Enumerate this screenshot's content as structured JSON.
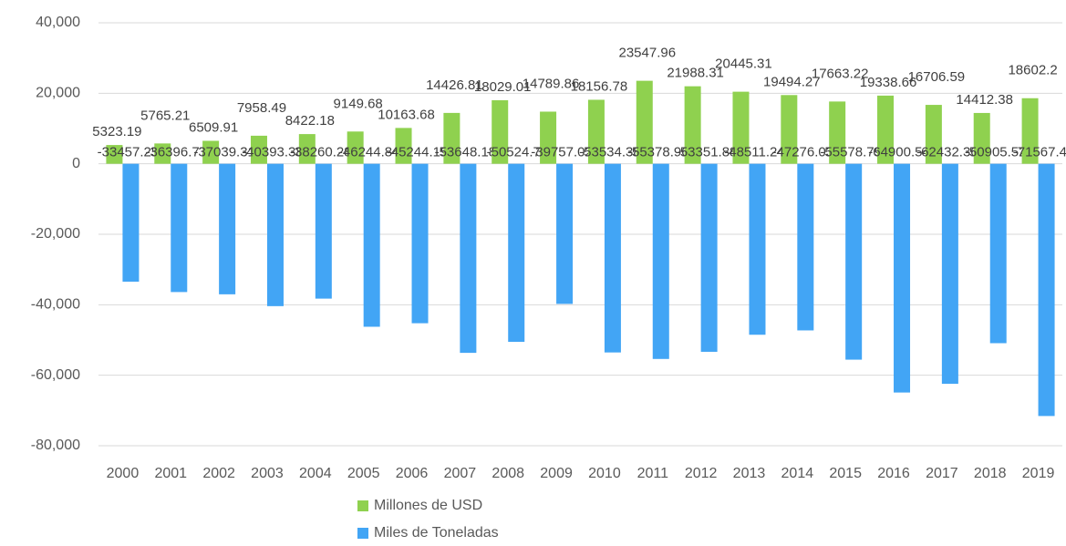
{
  "chart_data": {
    "type": "bar",
    "categories": [
      "2000",
      "2001",
      "2002",
      "2003",
      "2004",
      "2005",
      "2006",
      "2007",
      "2008",
      "2009",
      "2010",
      "2011",
      "2012",
      "2013",
      "2014",
      "2015",
      "2016",
      "2017",
      "2018",
      "2019"
    ],
    "series": [
      {
        "name": "Millones de USD",
        "color": "#8fd14f",
        "values": [
          5323.19,
          5765.21,
          6509.91,
          7958.49,
          8422.18,
          9149.68,
          10163.68,
          14426.81,
          18029.01,
          14789.86,
          18156.78,
          23547.96,
          21988.31,
          20445.31,
          19494.27,
          17663.22,
          19338.66,
          16706.59,
          14412.38,
          18602.2
        ],
        "value_labels": [
          "5323.19",
          "5765.21",
          "6509.91",
          "7958.49",
          "8422.18",
          "9149.68",
          "10163.68",
          "14426.81",
          "18029.01",
          "14789.86",
          "18156.78",
          "23547.96",
          "21988.31",
          "20445.31",
          "19494.27",
          "17663.22",
          "19338.66",
          "16706.59",
          "14412.38",
          "18602.2"
        ]
      },
      {
        "name": "Miles de Toneladas",
        "color": "#42a5f5",
        "values": [
          -33457.25,
          -36396.77,
          -37039.31,
          -40393.38,
          -38260.28,
          -46244.84,
          -45244.19,
          -53648.18,
          -50524.7,
          -39757.02,
          -53534.38,
          -55378.96,
          -53351.88,
          -48511.24,
          -47276.03,
          -55578.79,
          -64900.54,
          -62432.36,
          -50905.52,
          -71567.43
        ],
        "value_labels": [
          "-33457.25",
          "-36396.77",
          "-37039.31",
          "-40393.38",
          "-38260.28",
          "-46244.84",
          "-45244.19",
          "-53648.18",
          "-50524.7",
          "-39757.02",
          "-53534.38",
          "-55378.96",
          "-53351.88",
          "-48511.24",
          "-47276.03",
          "-55578.79",
          "-64900.54",
          "-62432.36",
          "-50905.52",
          "-71567.43"
        ]
      }
    ],
    "ylim": [
      -80000,
      40000
    ],
    "yticks": [
      {
        "value": -80000,
        "label": "-80,000"
      },
      {
        "value": -60000,
        "label": "-60,000"
      },
      {
        "value": -40000,
        "label": "-40,000"
      },
      {
        "value": -20000,
        "label": "-20,000"
      },
      0,
      {
        "value": 20000,
        "label": "20,000"
      },
      {
        "value": 40000,
        "label": "40,000"
      }
    ],
    "grid": true,
    "legend": "bottom"
  }
}
